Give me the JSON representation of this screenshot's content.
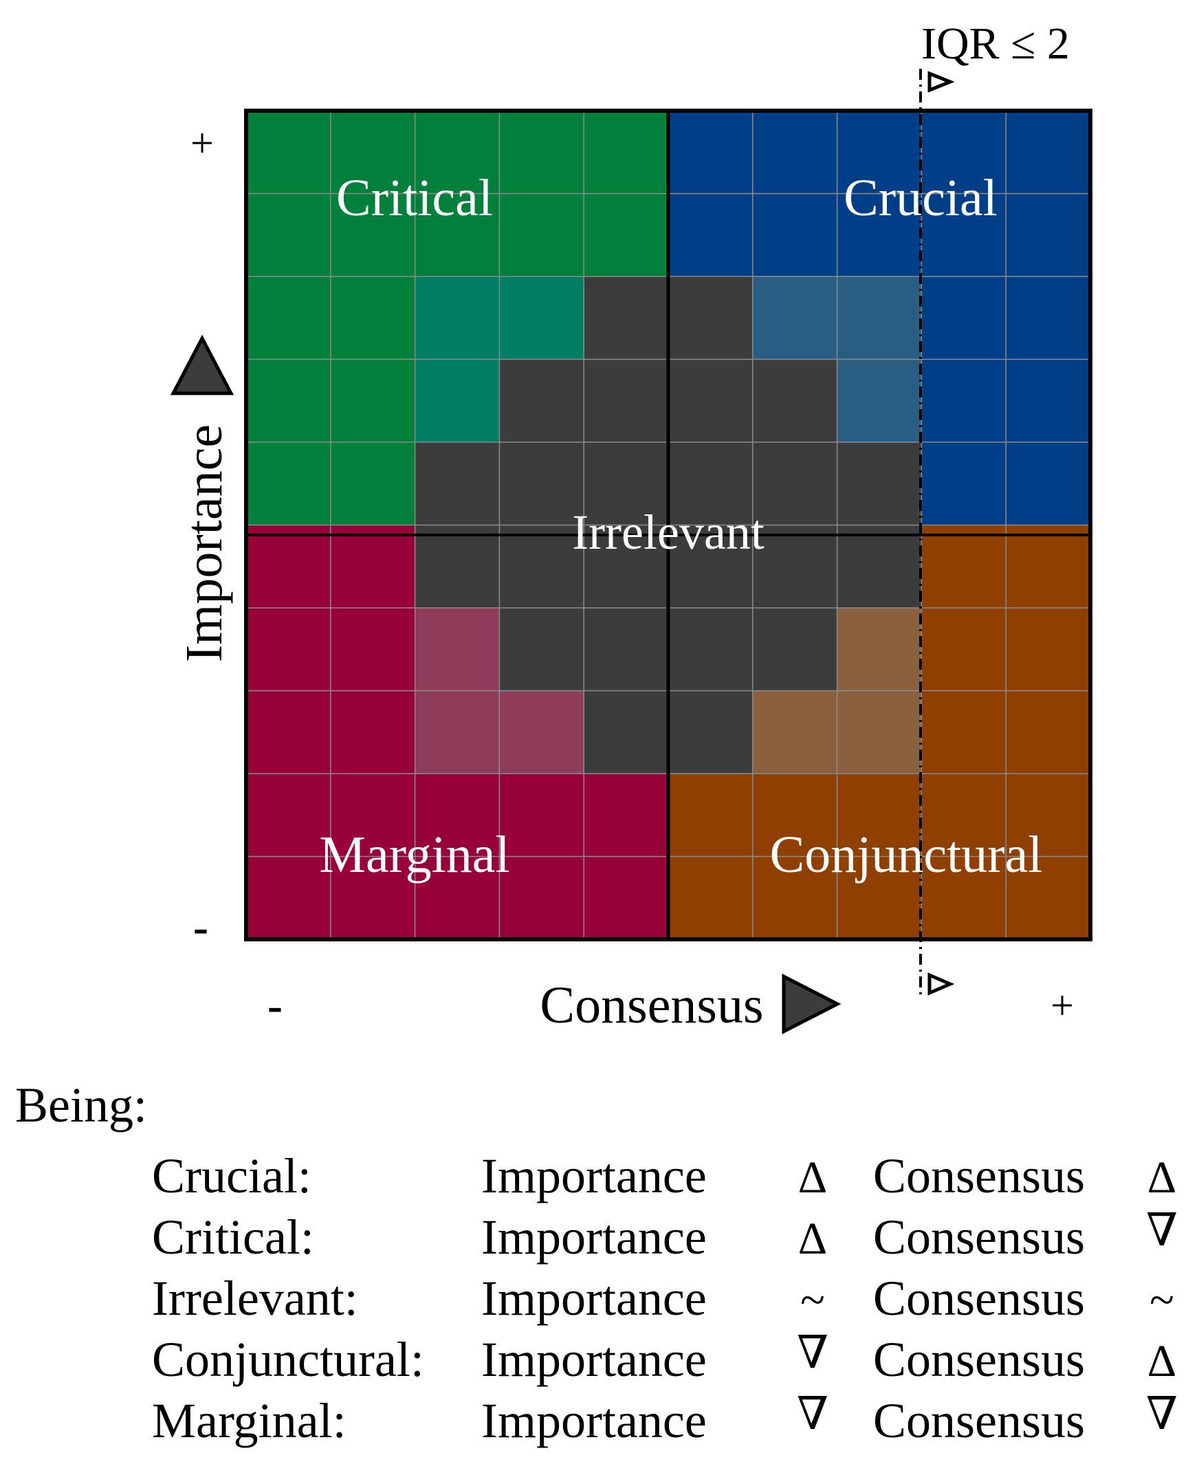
{
  "iqr_label": "IQR ≤ 2",
  "axes": {
    "x_label": "Consensus",
    "y_label": "Importance",
    "x_min": "-",
    "x_max": "+",
    "y_min": "-",
    "y_max": "+"
  },
  "regions": {
    "critical": "Critical",
    "crucial": "Crucial",
    "irrelevant": "Irrelevant",
    "marginal": "Marginal",
    "conjunctural": "Conjunctural"
  },
  "colors": {
    "critical": "#00803a",
    "critical_blend": "#007e64",
    "crucial": "#003f87",
    "crucial_blend": "#2a5d82",
    "irrelevant": "#3c3c3c",
    "marginal": "#970039",
    "marginal_blend": "#8f3c5b",
    "conjunctural": "#8f3f00",
    "conjunctural_blend": "#8a603e",
    "grid_line": "#8c8c8c",
    "border": "#000000"
  },
  "grid": {
    "rows": 10,
    "cols": 10,
    "cells": [
      "AAAAABBBBB",
      "AAAAABBBBB",
      "AAaaIIbbBB",
      "AAaIIIIbBB",
      "AAIIIIIIBB",
      "DDIIIIIICC",
      "DDdIIIIcCC",
      "DDddIIccCC",
      "DDDDDCCCCC",
      "DDDDDCCCCC"
    ],
    "legend_codes": {
      "A": "critical",
      "a": "critical_blend",
      "B": "crucial",
      "b": "crucial_blend",
      "I": "irrelevant",
      "D": "marginal",
      "d": "marginal_blend",
      "C": "conjunctural",
      "c": "conjunctural_blend"
    }
  },
  "legend": {
    "heading": "Being:",
    "rows": [
      {
        "category": "Crucial:",
        "importance_label": "Importance",
        "importance_symbol": "Δ",
        "consensus_label": "Consensus",
        "consensus_symbol": "Δ"
      },
      {
        "category": "Critical:",
        "importance_label": "Importance",
        "importance_symbol": "Δ",
        "consensus_label": "Consensus",
        "consensus_symbol": "∇"
      },
      {
        "category": "Irrelevant:",
        "importance_label": "Importance",
        "importance_symbol": "~",
        "consensus_label": "Consensus",
        "consensus_symbol": "~"
      },
      {
        "category": "Conjunctural:",
        "importance_label": "Importance",
        "importance_symbol": "∇",
        "consensus_label": "Consensus",
        "consensus_symbol": "Δ"
      },
      {
        "category": "Marginal:",
        "importance_label": "Importance",
        "importance_symbol": "∇",
        "consensus_label": "Consensus",
        "consensus_symbol": "∇"
      }
    ]
  }
}
